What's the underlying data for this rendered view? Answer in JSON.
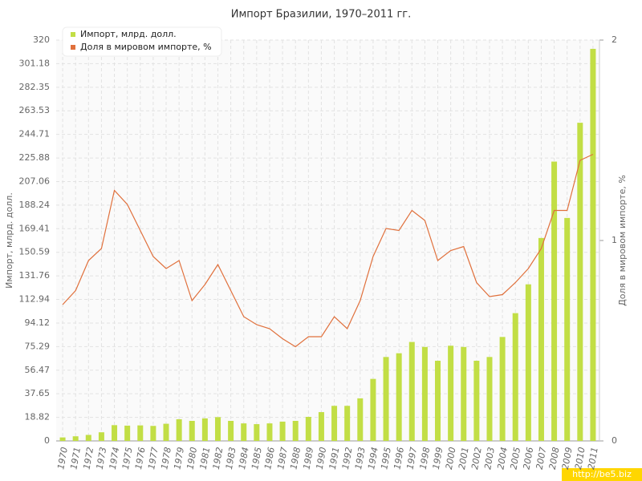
{
  "chart_data": {
    "type": "bar_line",
    "title": "Импорт Бразилии, 1970–2011 гг.",
    "y_label": "Импорт, млрд. долл.",
    "y2_label": "Доля в мировом импорте, %",
    "watermark": "http://be5.biz",
    "categories": [
      "1970",
      "1971",
      "1972",
      "1973",
      "1974",
      "1975",
      "1976",
      "1977",
      "1978",
      "1979",
      "1980",
      "1981",
      "1982",
      "1983",
      "1984",
      "1985",
      "1986",
      "1987",
      "1988",
      "1989",
      "1990",
      "1991",
      "1992",
      "1993",
      "1994",
      "1995",
      "1996",
      "1997",
      "1998",
      "1999",
      "2000",
      "2001",
      "2002",
      "2003",
      "2004",
      "2005",
      "2006",
      "2007",
      "2008",
      "2009",
      "2010",
      "2011"
    ],
    "series": [
      {
        "name": "Импорт, млрд. долл.",
        "color": "#c2de45",
        "type": "bar",
        "values": [
          2.8,
          3.7,
          4.8,
          6.9,
          12.6,
          12.2,
          12.4,
          12.0,
          13.7,
          17.3,
          16.0,
          18.0,
          19.0,
          16.0,
          14.0,
          13.4,
          14.0,
          15.4,
          16.0,
          19.2,
          23.0,
          28.0,
          28.0,
          34.0,
          49.5,
          67.0,
          70.0,
          79.0,
          75.0,
          64.0,
          76.0,
          75.0,
          64.0,
          67.0,
          83.0,
          102.0,
          125.0,
          162.0,
          223.0,
          178.0,
          254.0,
          313.0
        ]
      },
      {
        "name": "Доля в мировом импорте, %",
        "color": "#e0703c",
        "type": "line",
        "axis": "y2",
        "values": [
          0.68,
          0.75,
          0.9,
          0.96,
          1.25,
          1.18,
          1.05,
          0.92,
          0.86,
          0.9,
          0.7,
          0.78,
          0.88,
          0.75,
          0.62,
          0.58,
          0.56,
          0.51,
          0.47,
          0.52,
          0.52,
          0.62,
          0.56,
          0.7,
          0.92,
          1.06,
          1.05,
          1.15,
          1.1,
          0.9,
          0.95,
          0.97,
          0.79,
          0.72,
          0.73,
          0.79,
          0.86,
          0.96,
          1.15,
          1.15,
          1.4,
          1.43
        ]
      }
    ],
    "ylim": [
      0,
      320
    ],
    "yticks": [
      0,
      18.82,
      37.65,
      56.47,
      75.29,
      94.12,
      112.94,
      131.76,
      150.59,
      169.41,
      188.24,
      207.06,
      225.88,
      244.71,
      263.53,
      282.35,
      301.18,
      320
    ],
    "y2lim": [
      0,
      2
    ],
    "y2ticks": [
      0,
      1,
      2
    ],
    "grid": true,
    "legend": "top-left"
  }
}
